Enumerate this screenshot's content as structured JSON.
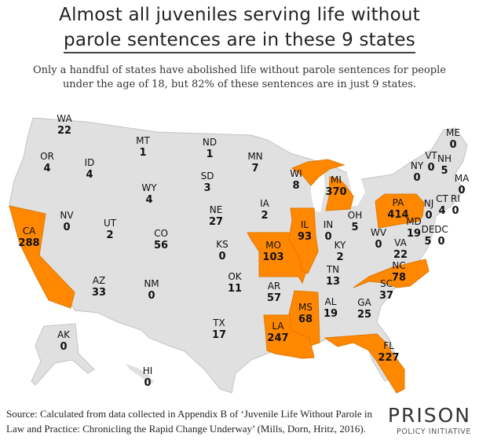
{
  "title": {
    "line1": "Almost all juveniles serving life without",
    "line2": "parole sentences are in these 9 states"
  },
  "subtitle": {
    "line1": "Only a handful of states have abolished life without parole sentences for people",
    "line2": "under the age of 18, but 82% of these sentences are in just 9 states."
  },
  "colors": {
    "highlight": "#ff8800",
    "base": "#e0e0e0",
    "border": "#c4c4c4"
  },
  "states": [
    {
      "abbr": "WA",
      "value": "22"
    },
    {
      "abbr": "OR",
      "value": "4"
    },
    {
      "abbr": "ID",
      "value": "4"
    },
    {
      "abbr": "MT",
      "value": "1"
    },
    {
      "abbr": "ND",
      "value": "1"
    },
    {
      "abbr": "SD",
      "value": "3"
    },
    {
      "abbr": "WY",
      "value": "4"
    },
    {
      "abbr": "NE",
      "value": "27"
    },
    {
      "abbr": "MN",
      "value": "7"
    },
    {
      "abbr": "WI",
      "value": "8"
    },
    {
      "abbr": "MI",
      "value": "370",
      "highlight": true
    },
    {
      "abbr": "NV",
      "value": "0"
    },
    {
      "abbr": "UT",
      "value": "2"
    },
    {
      "abbr": "CO",
      "value": "56"
    },
    {
      "abbr": "KS",
      "value": "0"
    },
    {
      "abbr": "CA",
      "value": "288",
      "highlight": true
    },
    {
      "abbr": "IA",
      "value": "2"
    },
    {
      "abbr": "IL",
      "value": "93",
      "highlight": true
    },
    {
      "abbr": "IN",
      "value": "0"
    },
    {
      "abbr": "OH",
      "value": "5"
    },
    {
      "abbr": "MO",
      "value": "103",
      "highlight": true
    },
    {
      "abbr": "KY",
      "value": "2"
    },
    {
      "abbr": "WV",
      "value": "0"
    },
    {
      "abbr": "PA",
      "value": "414",
      "highlight": true
    },
    {
      "abbr": "NY",
      "value": "0"
    },
    {
      "abbr": "VT",
      "value": "0"
    },
    {
      "abbr": "NH",
      "value": "5"
    },
    {
      "abbr": "ME",
      "value": "0"
    },
    {
      "abbr": "MA",
      "value": "0"
    },
    {
      "abbr": "CT",
      "value": "4"
    },
    {
      "abbr": "RI",
      "value": "0"
    },
    {
      "abbr": "NJ",
      "value": "0"
    },
    {
      "abbr": "MD",
      "value": "19"
    },
    {
      "abbr": "DE",
      "value": "5"
    },
    {
      "abbr": "DC",
      "value": "0"
    },
    {
      "abbr": "VA",
      "value": "22"
    },
    {
      "abbr": "NC",
      "value": "78",
      "highlight": true
    },
    {
      "abbr": "SC",
      "value": "37"
    },
    {
      "abbr": "TN",
      "value": "13"
    },
    {
      "abbr": "AZ",
      "value": "33"
    },
    {
      "abbr": "NM",
      "value": "0"
    },
    {
      "abbr": "OK",
      "value": "11"
    },
    {
      "abbr": "TX",
      "value": "17"
    },
    {
      "abbr": "AR",
      "value": "57"
    },
    {
      "abbr": "MS",
      "value": "68",
      "highlight": true
    },
    {
      "abbr": "AL",
      "value": "19"
    },
    {
      "abbr": "GA",
      "value": "25"
    },
    {
      "abbr": "LA",
      "value": "247",
      "highlight": true
    },
    {
      "abbr": "FL",
      "value": "227",
      "highlight": true
    },
    {
      "abbr": "AK",
      "value": "0"
    },
    {
      "abbr": "HI",
      "value": "0"
    }
  ],
  "source": {
    "line1": "Source: Calculated from data collected in Appendix B of ‘Juvenile Life Without Parole in",
    "line2": "Law and Practice: Chronicling the Rapid Change Underway’ (Mills, Dorn, Hritz, 2016)."
  },
  "logo": {
    "line1": "PRISON",
    "line2": "POLICY INITIATIVE"
  }
}
